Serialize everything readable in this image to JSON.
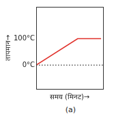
{
  "chart_data": {
    "type": "line",
    "x_label": "समय (मिनट)→",
    "y_label": "तापमान→",
    "annotations": [
      "(a)"
    ],
    "x": [
      0,
      62,
      97,
      100
    ],
    "series": [
      {
        "color": "#e0302a",
        "values": [
          0,
          100,
          100,
          null
        ]
      },
      {
        "color": "#000000",
        "line_style": "dotted",
        "values": [
          0,
          0,
          0,
          0
        ]
      }
    ],
    "xlim": [
      0,
      100
    ],
    "ylim": [
      -90,
      220
    ],
    "yticks": [
      {
        "value": 0,
        "label": "0°C"
      },
      {
        "value": 100,
        "label": "100°C"
      }
    ],
    "tick_labels": "y",
    "grid": false
  }
}
